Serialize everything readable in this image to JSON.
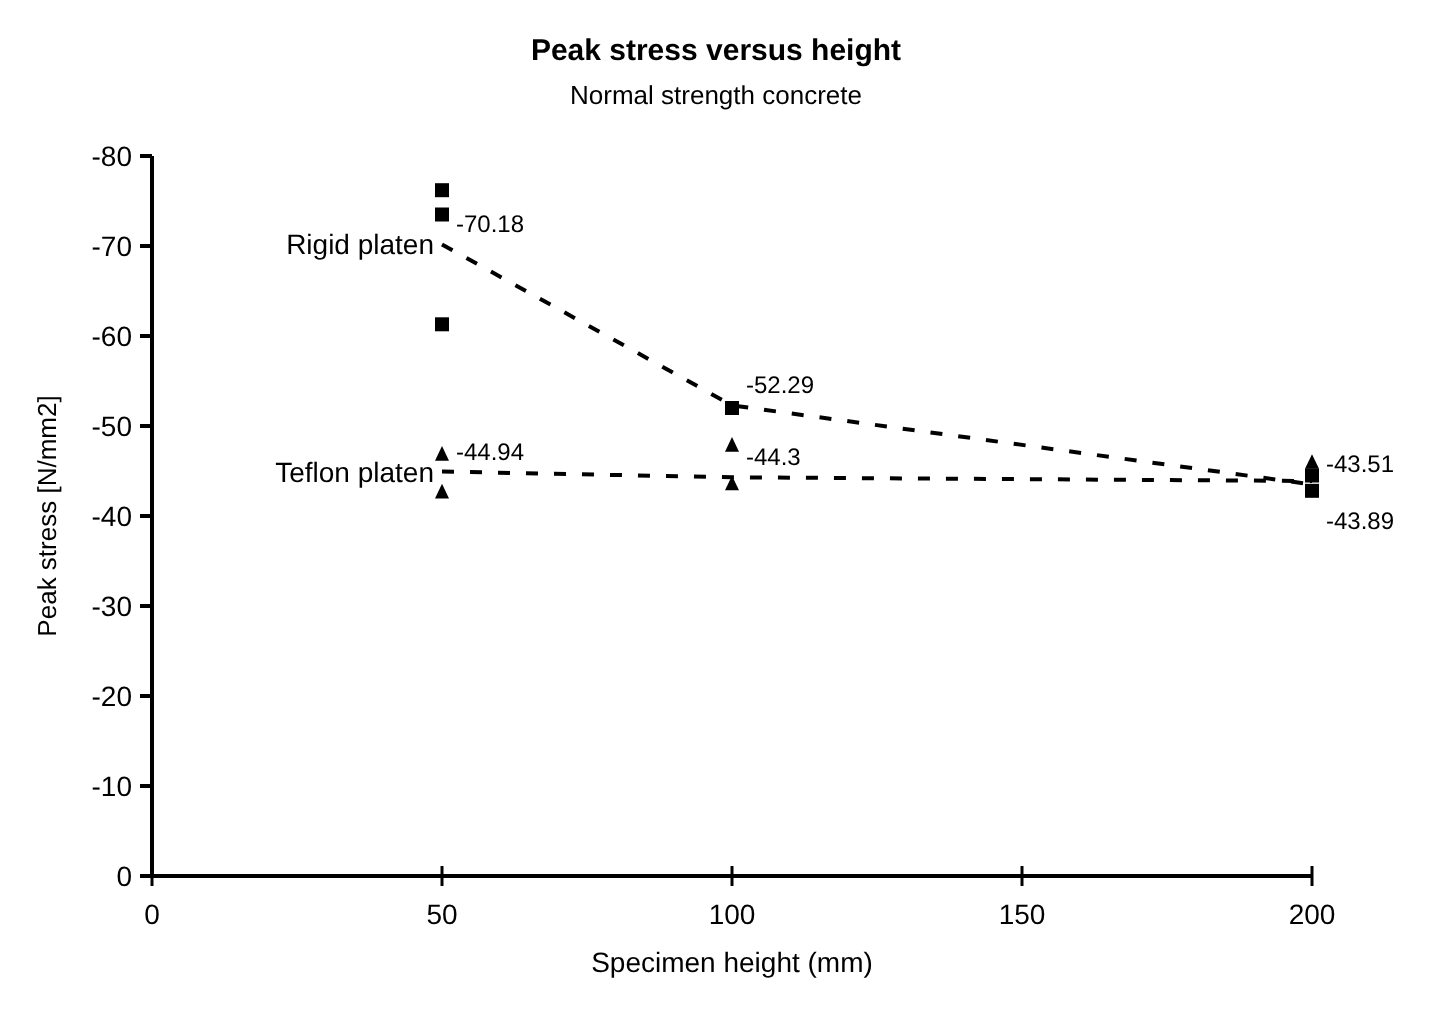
{
  "chart_data": {
    "type": "scatter",
    "title": "Peak stress versus height",
    "subtitle": "Normal strength concrete",
    "xlabel": "Specimen height (mm)",
    "ylabel": "Peak stress [N/mm2]",
    "xlim": [
      0,
      200
    ],
    "xticks": [
      0,
      50,
      100,
      150,
      200
    ],
    "ylim": [
      0,
      -80
    ],
    "yticks": [
      0,
      -10,
      -20,
      -30,
      -40,
      -50,
      -60,
      -70,
      -80
    ],
    "grid": false,
    "series": [
      {
        "color": "#000000",
        "marker": "square",
        "x": [
          50,
          50,
          50,
          100,
          200,
          200
        ],
        "values": [
          -76.2,
          -73.5,
          -61.3,
          -52,
          -44.5,
          -42.8
        ]
      },
      {
        "color": "#000000",
        "marker": "triangle",
        "x": [
          50,
          50,
          100,
          100,
          200
        ],
        "values": [
          -46.8,
          -42.6,
          -47.8,
          -43.5,
          -45.9
        ]
      },
      {
        "type": "line",
        "name": "Rigid platen",
        "color": "#000000",
        "marker": "none",
        "line_style": "dashed",
        "x": [
          50,
          100,
          200
        ],
        "values": [
          -70.18,
          -52.29,
          -43.51
        ],
        "value_labels": [
          "-70.18",
          "-52.29",
          "-43.51"
        ]
      },
      {
        "type": "line",
        "name": "Teflon platen",
        "color": "#000000",
        "marker": "none",
        "line_style": "dashed",
        "x": [
          50,
          100,
          200
        ],
        "values": [
          -44.94,
          -44.3,
          -43.89
        ],
        "value_labels": [
          "-44.94",
          "-44.3",
          "-43.89"
        ]
      }
    ]
  }
}
